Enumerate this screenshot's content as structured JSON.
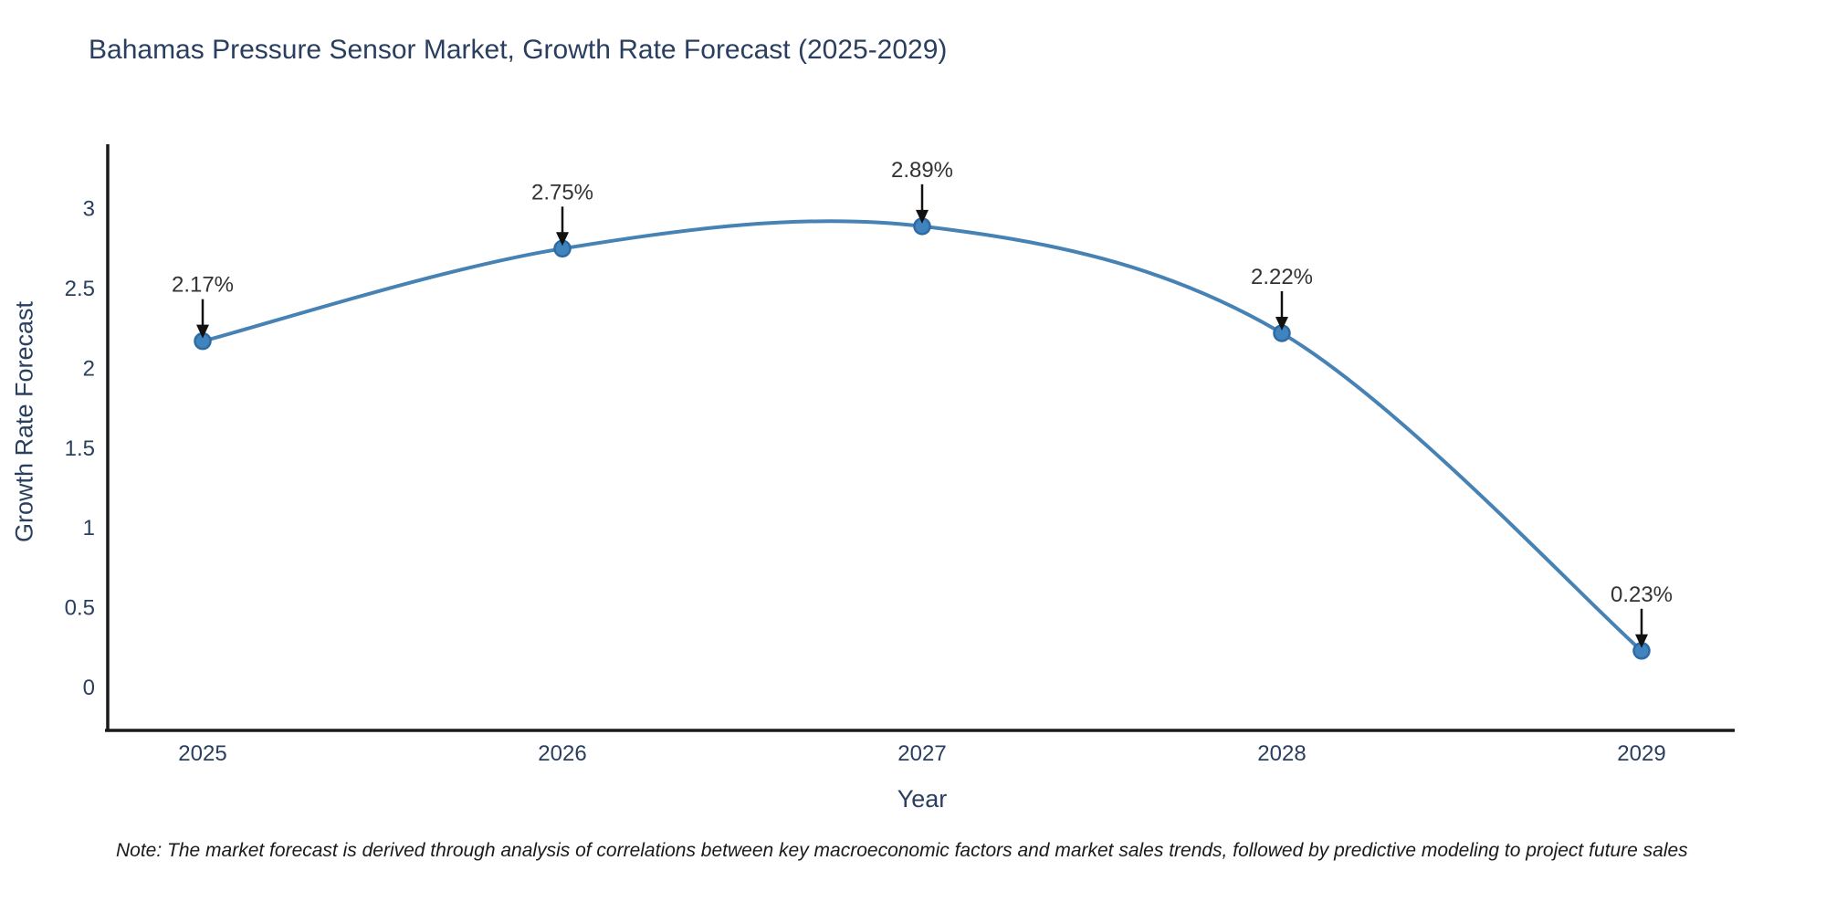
{
  "chart_data": {
    "type": "line",
    "title": "Bahamas Pressure Sensor Market, Growth Rate Forecast (2025-2029)",
    "xlabel": "Year",
    "ylabel": "Growth Rate Forecast",
    "categories": [
      "2025",
      "2026",
      "2027",
      "2028",
      "2029"
    ],
    "values": [
      2.17,
      2.75,
      2.89,
      2.22,
      0.23
    ],
    "point_labels": [
      "2.17%",
      "2.75%",
      "2.89%",
      "2.22%",
      "0.23%"
    ],
    "y_ticks": [
      "0",
      "0.5",
      "1",
      "1.5",
      "2",
      "2.5",
      "3"
    ],
    "y_tick_values": [
      0,
      0.5,
      1,
      1.5,
      2,
      2.5,
      3
    ],
    "ylim": [
      -0.27,
      3.4
    ],
    "legend": "none",
    "grid": false,
    "line_shape": "spline",
    "colors": {
      "line": "#4682b4",
      "marker_fill": "#3f83bf",
      "marker_edge": "#2f6ba3",
      "axis": "#1a1a1a",
      "arrow": "#111111",
      "text": "#2a3f5f"
    }
  },
  "note": "Note: The market forecast is derived through analysis of correlations between key macroeconomic factors and market sales trends, followed by predictive modeling to project future sales"
}
